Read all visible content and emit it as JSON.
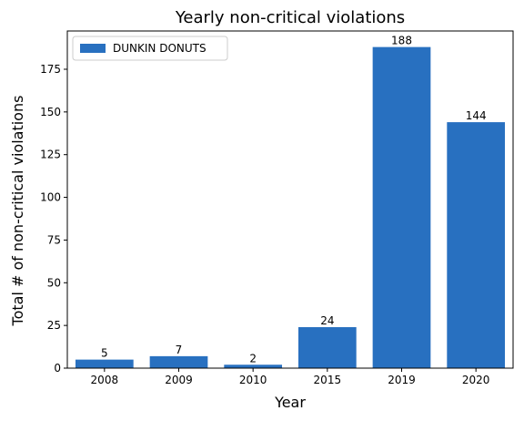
{
  "chart_data": {
    "type": "bar",
    "title": "Yearly non-critical violations",
    "xlabel": "Year",
    "ylabel": "Total # of non-critical violations",
    "categories": [
      "2008",
      "2009",
      "2010",
      "2015",
      "2019",
      "2020"
    ],
    "series": [
      {
        "name": "DUNKIN DONUTS",
        "values": [
          5,
          7,
          2,
          24,
          188,
          144
        ],
        "color": "#2870c0"
      }
    ],
    "ylim": [
      0,
      197.4
    ],
    "yticks": [
      0,
      25,
      50,
      75,
      100,
      125,
      150,
      175
    ],
    "grid": false,
    "legend_position": "top-left",
    "data_labels": true
  }
}
